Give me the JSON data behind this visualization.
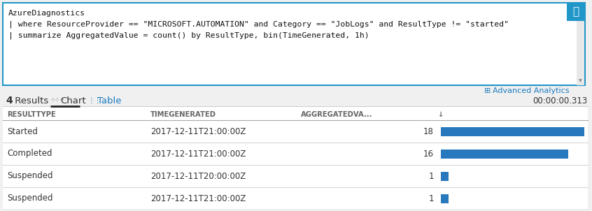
{
  "query_box_bg": "#ffffff",
  "query_box_border": "#2196c8",
  "query_line1": "AzureDiagnostics",
  "query_line2": "| where ResourceProvider == \"MICROSOFT.AUTOMATION\" and Category == \"JobLogs\" and ResultType != \"started\"",
  "query_line3": "| summarize AggregatedValue = count() by ResultType, bin(TimeGenerated, 1h)",
  "advanced_analytics_color": "#1a7abf",
  "advanced_analytics_text": "Advanced Analytics",
  "results_count": "4 Results",
  "tab_chart": "Chart",
  "tab_table": "Table",
  "time_text": "00:00:00.313",
  "tab_underline_color": "#222222",
  "header_text_color": "#666666",
  "col1_header": "RESULTTYPE",
  "col2_header": "TIMEGENERATED",
  "col3_header": "AGGREGATEDVA...",
  "rows": [
    {
      "resulttype": "Started",
      "timegenerated": "2017-12-11T21:00:00Z",
      "value": 18
    },
    {
      "resulttype": "Completed",
      "timegenerated": "2017-12-11T21:00:00Z",
      "value": 16
    },
    {
      "resulttype": "Suspended",
      "timegenerated": "2017-12-11T20:00:00Z",
      "value": 1
    },
    {
      "resulttype": "Suspended",
      "timegenerated": "2017-12-11T21:00:00Z",
      "value": 1
    }
  ],
  "bar_color": "#2878be",
  "bar_max_value": 18,
  "row_divider_color": "#cccccc",
  "header_divider_color": "#aaaaaa",
  "outer_bg": "#f0f0f0",
  "text_color": "#333333",
  "query_text_color": "#111111",
  "search_icon_bg": "#2196c8",
  "search_icon_color": "#ffffff",
  "scroll_track_color": "#e8e8e8",
  "scroll_arrow_color": "#888888",
  "tab_line_color": "#cccccc"
}
